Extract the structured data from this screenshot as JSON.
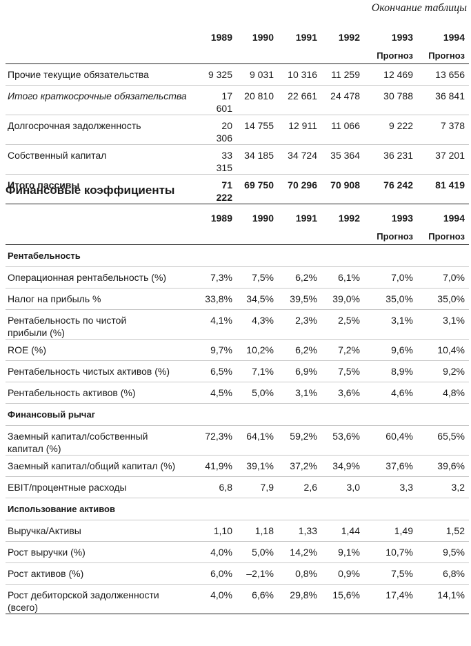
{
  "caption": "Окончание таблицы",
  "table1": {
    "header": [
      "1989",
      "1990",
      "1991",
      "1992",
      "1993",
      "1994"
    ],
    "subheader": [
      "",
      "",
      "",
      "",
      "Прогноз",
      "Прогноз"
    ],
    "rows": [
      {
        "label": "Прочие текущие обязательства",
        "values": [
          "9 325",
          "9 031",
          "10 316",
          "11 259",
          "12 469",
          "13 656"
        ]
      },
      {
        "label": "Итого краткосрочные обязательства",
        "style": "italic",
        "values": [
          "17 601",
          "20 810",
          "22 661",
          "24 478",
          "30 788",
          "36 841"
        ]
      },
      {
        "label": "Долгосрочная задолженность",
        "values": [
          "20 306",
          "14 755",
          "12 911",
          "11 066",
          "9 222",
          "7 378"
        ]
      },
      {
        "label": "Собственный капитал",
        "values": [
          "33 315",
          "34 185",
          "34 724",
          "35 364",
          "36 231",
          "37 201"
        ]
      },
      {
        "label": "Итого пассивы",
        "style": "bold",
        "values": [
          "71 222",
          "69 750",
          "70 296",
          "70 908",
          "76 242",
          "81 419"
        ]
      }
    ]
  },
  "section_title": "Финансовые коэффициенты",
  "table2": {
    "header": [
      "1989",
      "1990",
      "1991",
      "1992",
      "1993",
      "1994"
    ],
    "subheader": [
      "",
      "",
      "",
      "",
      "Прогноз",
      "Прогноз"
    ],
    "groups": [
      {
        "title": "Рентабельность",
        "rows": [
          {
            "label": "Операционная рентабельность (%)",
            "values": [
              "7,3%",
              "7,5%",
              "6,2%",
              "6,1%",
              "7,0%",
              "7,0%"
            ]
          },
          {
            "label": "Налог на прибыль %",
            "values": [
              "33,8%",
              "34,5%",
              "39,5%",
              "39,0%",
              "35,0%",
              "35,0%"
            ]
          },
          {
            "label": "Рентабельность по чистой\nприбыли (%)",
            "values": [
              "4,1%",
              "4,3%",
              "2,3%",
              "2,5%",
              "3,1%",
              "3,1%"
            ]
          },
          {
            "label": "ROE (%)",
            "values": [
              "9,7%",
              "10,2%",
              "6,2%",
              "7,2%",
              "9,6%",
              "10,4%"
            ]
          },
          {
            "label": "Рентабельность чистых активов (%)",
            "values": [
              "6,5%",
              "7,1%",
              "6,9%",
              "7,5%",
              "8,9%",
              "9,2%"
            ]
          },
          {
            "label": "Рентабельность активов (%)",
            "values": [
              "4,5%",
              "5,0%",
              "3,1%",
              "3,6%",
              "4,6%",
              "4,8%"
            ]
          }
        ]
      },
      {
        "title": "Финансовый рычаг",
        "rows": [
          {
            "label": "Заемный капитал/собственный\nкапитал (%)",
            "values": [
              "72,3%",
              "64,1%",
              "59,2%",
              "53,6%",
              "60,4%",
              "65,5%"
            ]
          },
          {
            "label": "Заемный капитал/общий капитал (%)",
            "values": [
              "41,9%",
              "39,1%",
              "37,2%",
              "34,9%",
              "37,6%",
              "39,6%"
            ]
          },
          {
            "label": "EBIT/процентные расходы",
            "values": [
              "6,8",
              "7,9",
              "2,6",
              "3,0",
              "3,3",
              "3,2"
            ]
          }
        ]
      },
      {
        "title": "Использование активов",
        "rows": [
          {
            "label": "Выручка/Активы",
            "values": [
              "1,10",
              "1,18",
              "1,33",
              "1,44",
              "1,49",
              "1,52"
            ]
          },
          {
            "label": "Рост выручки (%)",
            "values": [
              "4,0%",
              "5,0%",
              "14,2%",
              "9,1%",
              "10,7%",
              "9,5%"
            ]
          },
          {
            "label": "Рост активов (%)",
            "values": [
              "6,0%",
              "–2,1%",
              "0,8%",
              "0,9%",
              "7,5%",
              "6,8%"
            ]
          },
          {
            "label": "Рост дебиторской задолженности\n(всего)",
            "values": [
              "4,0%",
              "6,6%",
              "29,8%",
              "15,6%",
              "17,4%",
              "14,1%"
            ]
          }
        ]
      }
    ]
  }
}
